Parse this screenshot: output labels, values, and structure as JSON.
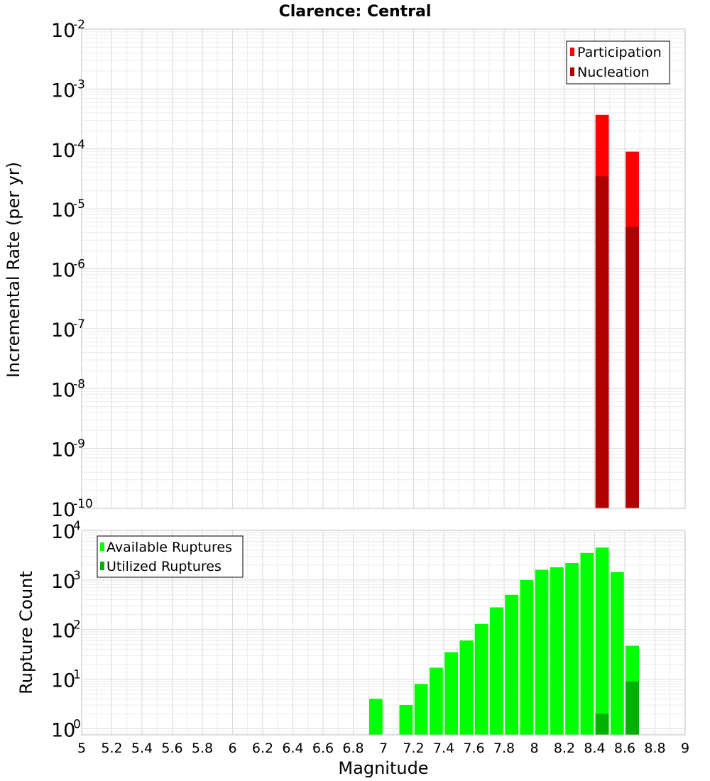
{
  "chart_data": [
    {
      "type": "bar",
      "title": "Clarence: Central",
      "ylabel": "Incremental Rate (per yr)",
      "xlabel": "",
      "xlim": [
        5,
        9
      ],
      "ylim": [
        1e-10,
        0.01
      ],
      "yscale": "log",
      "grid": true,
      "legend_position": "top-right",
      "y_tick_labels": [
        {
          "base": "10",
          "exp": "-2"
        },
        {
          "base": "10",
          "exp": "-3"
        },
        {
          "base": "10",
          "exp": "-4"
        },
        {
          "base": "10",
          "exp": "-5"
        },
        {
          "base": "10",
          "exp": "-6"
        },
        {
          "base": "10",
          "exp": "-7"
        },
        {
          "base": "10",
          "exp": "-8"
        },
        {
          "base": "10",
          "exp": "-9"
        },
        {
          "base": "10",
          "exp": "-10"
        }
      ],
      "series": [
        {
          "name": "Participation",
          "color": "#ff0000",
          "points": [
            {
              "x": 8.45,
              "y": 0.00037
            },
            {
              "x": 8.65,
              "y": 9e-05
            }
          ]
        },
        {
          "name": "Nucleation",
          "color": "#b00000",
          "points": [
            {
              "x": 8.45,
              "y": 3.5e-05
            },
            {
              "x": 8.65,
              "y": 5e-06
            }
          ]
        }
      ]
    },
    {
      "type": "bar",
      "title": "",
      "ylabel": "Rupture Count",
      "xlabel": "Magnitude",
      "xlim": [
        5,
        9
      ],
      "ylim": [
        0.75,
        10000
      ],
      "yscale": "log",
      "grid": true,
      "legend_position": "top-left",
      "y_tick_labels": [
        {
          "base": "10",
          "exp": "4"
        },
        {
          "base": "10",
          "exp": "3"
        },
        {
          "base": "10",
          "exp": "2"
        },
        {
          "base": "10",
          "exp": "1"
        },
        {
          "base": "10",
          "exp": "0"
        }
      ],
      "x_tick_labels": [
        "5",
        "5.2",
        "5.4",
        "5.6",
        "5.8",
        "6",
        "6.2",
        "6.4",
        "6.6",
        "6.8",
        "7",
        "7.2",
        "7.4",
        "7.6",
        "7.8",
        "8",
        "8.2",
        "8.4",
        "8.6",
        "8.8",
        "9"
      ],
      "series": [
        {
          "name": "Available Ruptures",
          "color": "#00ff00",
          "points": [
            {
              "x": 6.95,
              "y": 4
            },
            {
              "x": 7.15,
              "y": 3
            },
            {
              "x": 7.25,
              "y": 8
            },
            {
              "x": 7.35,
              "y": 17
            },
            {
              "x": 7.45,
              "y": 35
            },
            {
              "x": 7.55,
              "y": 60
            },
            {
              "x": 7.65,
              "y": 130
            },
            {
              "x": 7.75,
              "y": 280
            },
            {
              "x": 7.85,
              "y": 500
            },
            {
              "x": 7.95,
              "y": 1000
            },
            {
              "x": 8.05,
              "y": 1600
            },
            {
              "x": 8.15,
              "y": 1800
            },
            {
              "x": 8.25,
              "y": 2200
            },
            {
              "x": 8.35,
              "y": 3500
            },
            {
              "x": 8.45,
              "y": 4500
            },
            {
              "x": 8.55,
              "y": 1450
            },
            {
              "x": 8.65,
              "y": 47
            }
          ]
        },
        {
          "name": "Utilized Ruptures",
          "color": "#00b000",
          "points": [
            {
              "x": 8.45,
              "y": 2
            },
            {
              "x": 8.65,
              "y": 9
            }
          ]
        }
      ]
    }
  ]
}
